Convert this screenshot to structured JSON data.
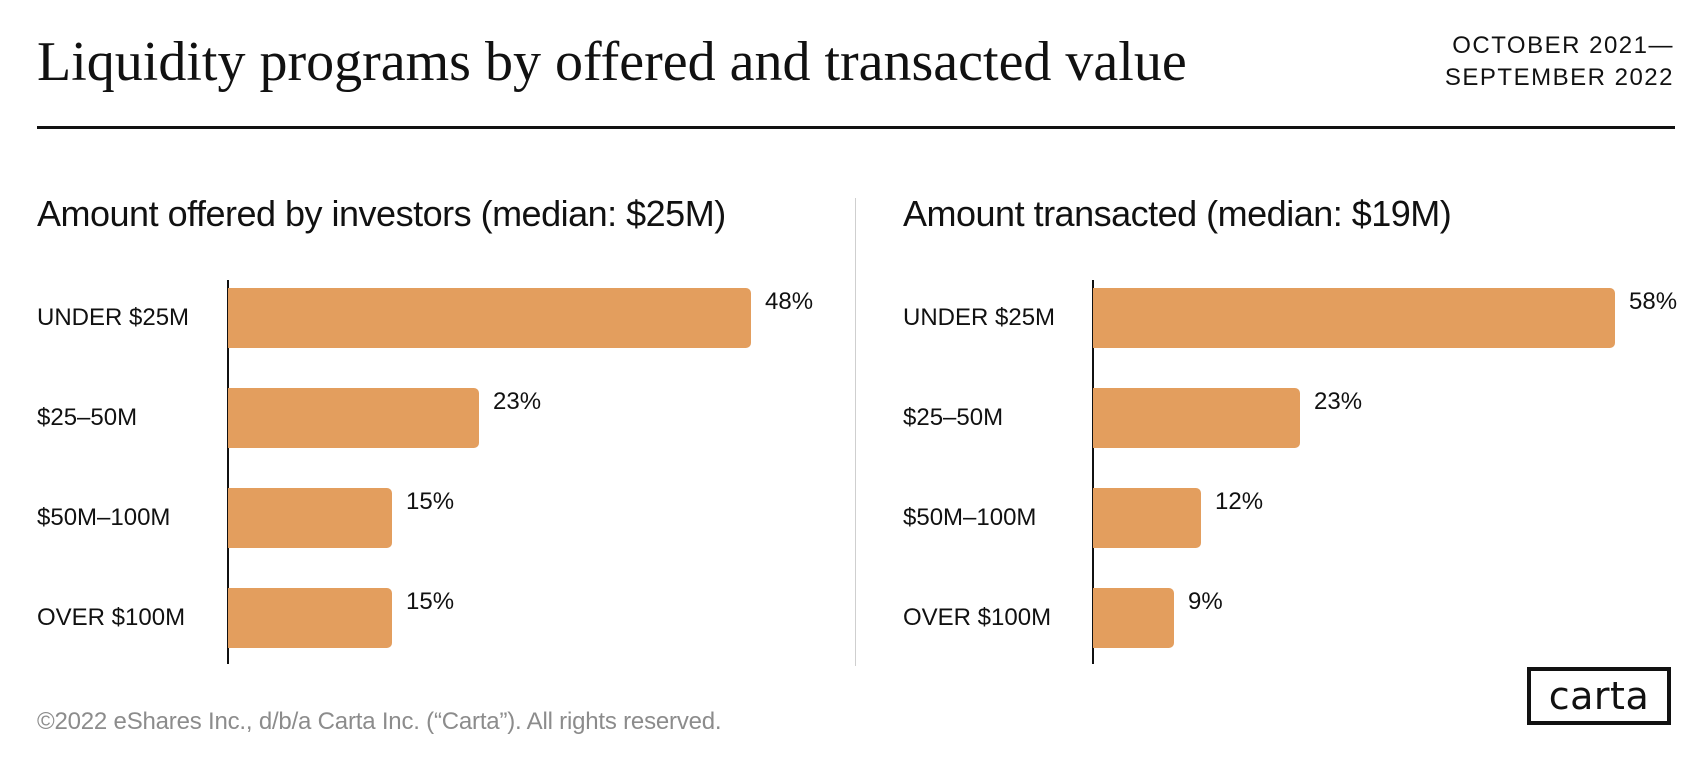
{
  "header": {
    "title": "Liquidity programs by offered and transacted value",
    "date_range_line1": "OCTOBER 2021—",
    "date_range_line2": "SEPTEMBER 2022"
  },
  "colors": {
    "bar": "#E39E5E",
    "text": "#111111",
    "footer_text": "#8C8C8C",
    "divider": "#CFCFCF"
  },
  "footer": {
    "copyright": "©2022 eShares Inc., d/b/a Carta Inc. (“Carta”). All rights reserved.",
    "logo_text": "carta"
  },
  "chart_data": [
    {
      "type": "bar",
      "orientation": "horizontal",
      "title": "Amount offered by investors (median: $25M)",
      "categories": [
        "UNDER $25M",
        "$25–50M",
        "$50M–100M",
        "OVER $100M"
      ],
      "values": [
        48,
        23,
        15,
        15
      ],
      "value_labels": [
        "48%",
        "23%",
        "15%",
        "15%"
      ],
      "xlabel": "",
      "ylabel": "",
      "unit": "%",
      "grid": false,
      "legend": "none"
    },
    {
      "type": "bar",
      "orientation": "horizontal",
      "title": "Amount transacted (median: $19M)",
      "categories": [
        "UNDER $25M",
        "$25–50M",
        "$50M–100M",
        "OVER $100M"
      ],
      "values": [
        58,
        23,
        12,
        9
      ],
      "value_labels": [
        "58%",
        "23%",
        "12%",
        "9%"
      ],
      "xlabel": "",
      "ylabel": "",
      "unit": "%",
      "grid": false,
      "legend": "none"
    }
  ]
}
